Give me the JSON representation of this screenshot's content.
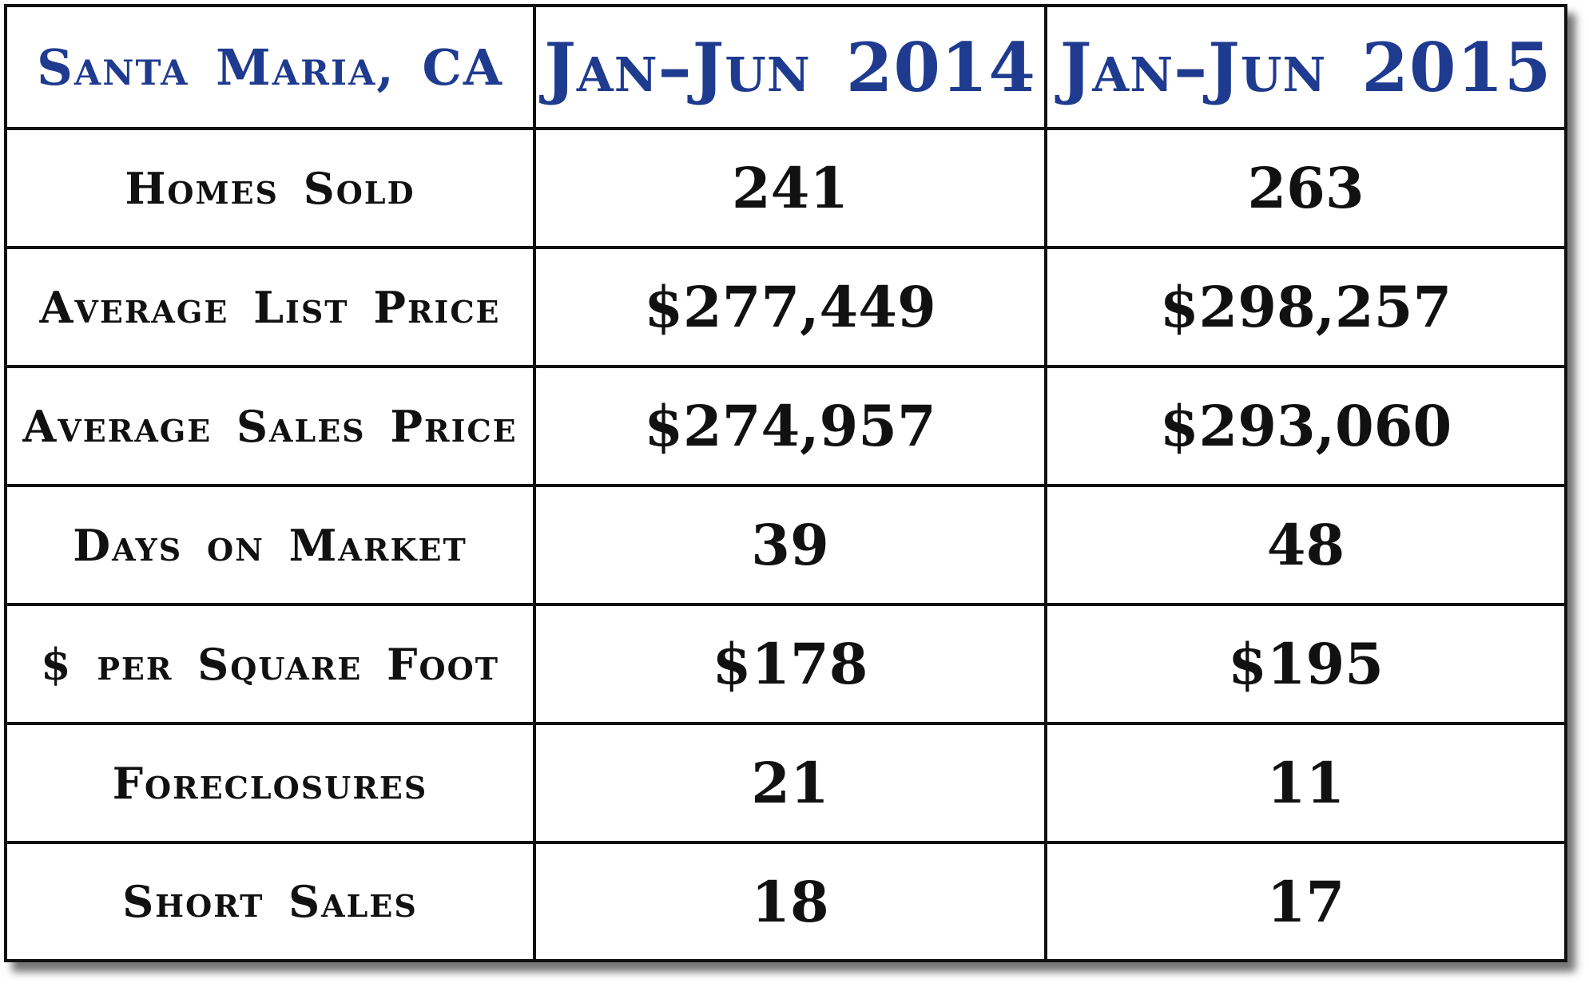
{
  "chart_data": {
    "type": "table",
    "columns": [
      "Santa Maria, CA",
      "Jan–Jun 2014",
      "Jan–Jun 2015"
    ],
    "rows": [
      {
        "label": "Homes Sold",
        "values": [
          "241",
          "263"
        ]
      },
      {
        "label": "Average List Price",
        "values": [
          "$277,449",
          "$298,257"
        ]
      },
      {
        "label": "Average Sales Price",
        "values": [
          "$274,957",
          "$293,060"
        ]
      },
      {
        "label": "Days on Market",
        "values": [
          "39",
          "48"
        ]
      },
      {
        "label": "$ per Square Foot",
        "values": [
          "$178",
          "$195"
        ]
      },
      {
        "label": "Foreclosures",
        "values": [
          "21",
          "11"
        ]
      },
      {
        "label": "Short Sales",
        "values": [
          "18",
          "17"
        ]
      }
    ]
  },
  "colors": {
    "header_text": "#1f3b8f",
    "body_text": "#111111",
    "grid": "#111111",
    "background": "#ffffff"
  }
}
